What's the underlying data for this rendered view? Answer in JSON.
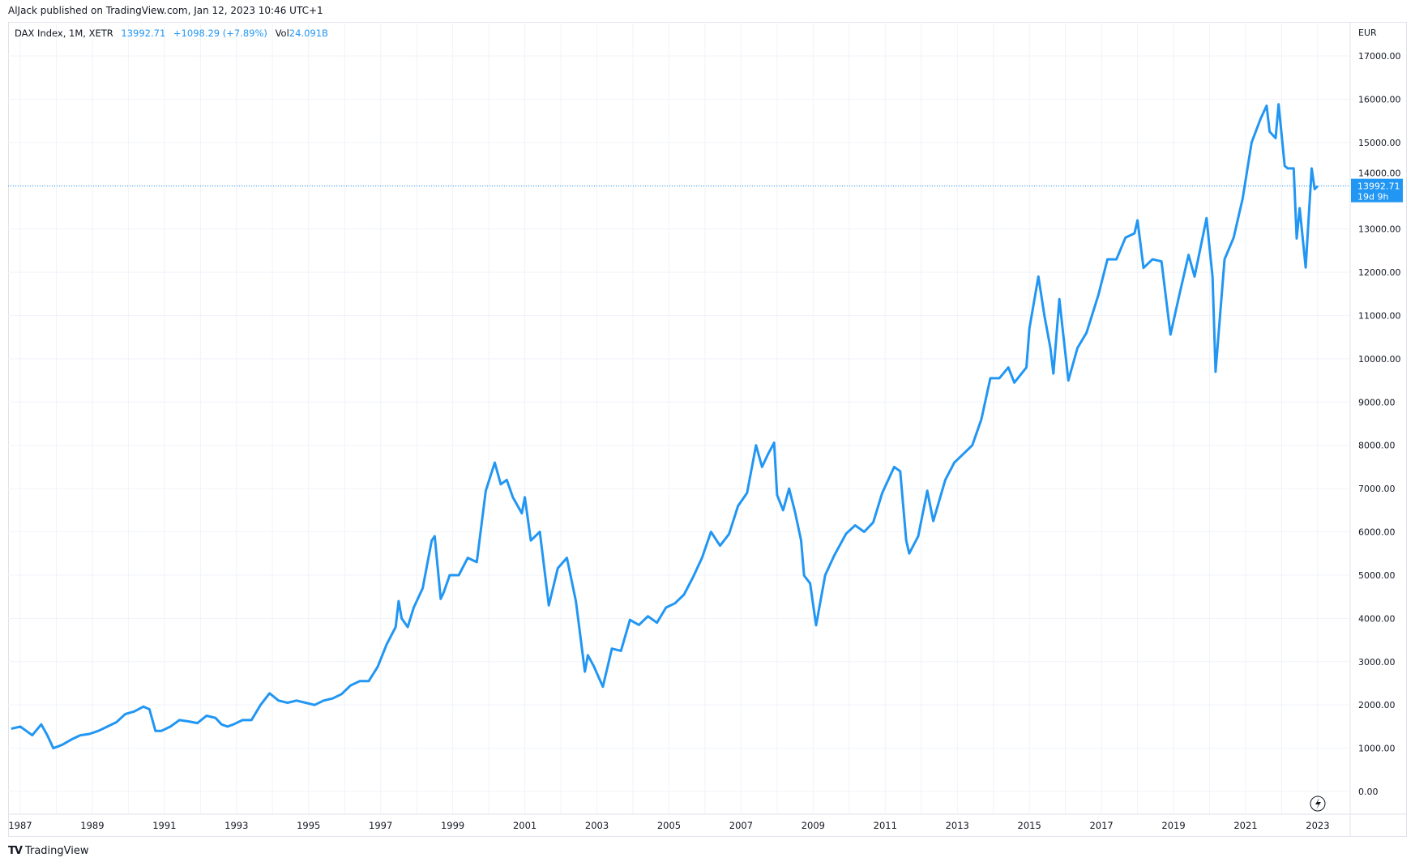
{
  "publish_line": "AlJack published on TradingView.com, Jan 12, 2023 10:46 UTC+1",
  "legend": {
    "symbol": "DAX Index, 1M, XETR",
    "last": "13992.71",
    "change": "+1098.29 (+7.89%)",
    "vol_label": "Vol",
    "vol_value": "24.091B"
  },
  "price_axis": {
    "currency": "EUR"
  },
  "price_tag": {
    "value": "13992.71",
    "countdown": "19d 9h"
  },
  "branding": "TradingView",
  "colors": {
    "line": "#2196f3",
    "grid": "#f0f3fa",
    "tag": "#2196f3"
  },
  "icons": {
    "lightning": "lightning-icon",
    "logo": "tradingview-logo"
  },
  "chart_data": {
    "type": "line",
    "title": "",
    "xlabel": "",
    "ylabel": "",
    "ylim": [
      -500,
      17500
    ],
    "xlim": [
      "1986-09",
      "2023-06"
    ],
    "grid": true,
    "last_price_line": 13992.71,
    "y_ticks": [
      0,
      1000,
      2000,
      3000,
      4000,
      5000,
      6000,
      7000,
      8000,
      9000,
      10000,
      11000,
      12000,
      13000,
      14000,
      15000,
      16000,
      17000
    ],
    "y_tick_labels": [
      "0.00",
      "1000.00",
      "2000.00",
      "3000.00",
      "4000.00",
      "5000.00",
      "6000.00",
      "7000.00",
      "8000.00",
      "9000.00",
      "10000.00",
      "11000.00",
      "12000.00",
      "13000.00",
      "14000.00",
      "15000.00",
      "16000.00",
      "17000.00"
    ],
    "x_tick_labels": [
      "1987",
      "1989",
      "1991",
      "1993",
      "1995",
      "1997",
      "1999",
      "2001",
      "2003",
      "2005",
      "2007",
      "2009",
      "2011",
      "2013",
      "2015",
      "2017",
      "2019",
      "2021",
      "2023"
    ],
    "series": [
      {
        "x": [
          "1986-10",
          "1987-01",
          "1987-03",
          "1987-05",
          "1987-08",
          "1987-10",
          "1987-12",
          "1988-03",
          "1988-06",
          "1988-09",
          "1988-12",
          "1989-03",
          "1989-06",
          "1989-09",
          "1989-12",
          "1990-03",
          "1990-06",
          "1990-08",
          "1990-10",
          "1990-12",
          "1991-03",
          "1991-06",
          "1991-09",
          "1991-12",
          "1992-03",
          "1992-06",
          "1992-08",
          "1992-10",
          "1992-12",
          "1993-03",
          "1993-06",
          "1993-09",
          "1993-12",
          "1994-03",
          "1994-06",
          "1994-09",
          "1994-12",
          "1995-03",
          "1995-06",
          "1995-09",
          "1995-12",
          "1996-03",
          "1996-06",
          "1996-09",
          "1996-12",
          "1997-03",
          "1997-06",
          "1997-07",
          "1997-08",
          "1997-10",
          "1997-12",
          "1998-03",
          "1998-06",
          "1998-07",
          "1998-09",
          "1998-10",
          "1998-12",
          "1999-03",
          "1999-06",
          "1999-09",
          "1999-12",
          "2000-03",
          "2000-05",
          "2000-07",
          "2000-09",
          "2000-12",
          "2001-01",
          "2001-03",
          "2001-06",
          "2001-09",
          "2001-12",
          "2002-03",
          "2002-06",
          "2002-09",
          "2002-10",
          "2002-12",
          "2003-03",
          "2003-06",
          "2003-09",
          "2003-12",
          "2004-03",
          "2004-06",
          "2004-09",
          "2004-12",
          "2005-03",
          "2005-06",
          "2005-09",
          "2005-12",
          "2006-03",
          "2006-06",
          "2006-09",
          "2006-12",
          "2007-03",
          "2007-06",
          "2007-08",
          "2007-10",
          "2007-12",
          "2008-01",
          "2008-03",
          "2008-05",
          "2008-07",
          "2008-09",
          "2008-10",
          "2008-12",
          "2009-02",
          "2009-05",
          "2009-08",
          "2009-12",
          "2010-03",
          "2010-06",
          "2010-09",
          "2010-12",
          "2011-04",
          "2011-06",
          "2011-08",
          "2011-09",
          "2011-12",
          "2012-03",
          "2012-05",
          "2012-09",
          "2012-12",
          "2013-03",
          "2013-06",
          "2013-09",
          "2013-12",
          "2014-03",
          "2014-06",
          "2014-08",
          "2014-12",
          "2015-01",
          "2015-04",
          "2015-06",
          "2015-08",
          "2015-09",
          "2015-11",
          "2015-12",
          "2016-02",
          "2016-05",
          "2016-08",
          "2016-12",
          "2017-03",
          "2017-06",
          "2017-09",
          "2017-12",
          "2018-01",
          "2018-03",
          "2018-06",
          "2018-09",
          "2018-12",
          "2019-03",
          "2019-06",
          "2019-08",
          "2019-12",
          "2020-02",
          "2020-03",
          "2020-06",
          "2020-09",
          "2020-12",
          "2021-03",
          "2021-06",
          "2021-08",
          "2021-09",
          "2021-11",
          "2021-12",
          "2022-02",
          "2022-03",
          "2022-05",
          "2022-06",
          "2022-07",
          "2022-09",
          "2022-11",
          "2022-12",
          "2023-01"
        ],
        "y": [
          1450,
          1500,
          1400,
          1300,
          1550,
          1300,
          1000,
          1080,
          1200,
          1300,
          1330,
          1400,
          1500,
          1600,
          1790,
          1850,
          1960,
          1900,
          1400,
          1400,
          1500,
          1650,
          1620,
          1580,
          1750,
          1700,
          1550,
          1500,
          1550,
          1650,
          1650,
          2000,
          2270,
          2100,
          2050,
          2100,
          2050,
          2000,
          2100,
          2150,
          2250,
          2450,
          2550,
          2550,
          2880,
          3400,
          3800,
          4400,
          4000,
          3800,
          4250,
          4700,
          5800,
          5900,
          4450,
          4600,
          5000,
          5000,
          5400,
          5300,
          6950,
          7600,
          7100,
          7200,
          6800,
          6430,
          6800,
          5800,
          6000,
          4300,
          5160,
          5400,
          4400,
          2770,
          3150,
          2890,
          2420,
          3300,
          3250,
          3965,
          3850,
          4050,
          3900,
          4250,
          4350,
          4550,
          4950,
          5400,
          6000,
          5680,
          5950,
          6600,
          6900,
          8000,
          7500,
          7800,
          8060,
          6850,
          6500,
          7000,
          6450,
          5800,
          4990,
          4810,
          3840,
          5000,
          5450,
          5960,
          6150,
          6000,
          6220,
          6900,
          7500,
          7400,
          5800,
          5500,
          5900,
          6950,
          6250,
          7200,
          7600,
          7800,
          8000,
          8600,
          9550,
          9550,
          9800,
          9450,
          9800,
          10700,
          11900,
          11000,
          10250,
          9660,
          11380,
          10740,
          9500,
          10250,
          10600,
          11480,
          12300,
          12300,
          12800,
          12900,
          13200,
          12100,
          12300,
          12250,
          10560,
          11500,
          12400,
          11900,
          13250,
          11890,
          9700,
          12300,
          12800,
          13700,
          15000,
          15550,
          15850,
          15250,
          15100,
          15880,
          14460,
          14400,
          14400,
          12780,
          13480,
          12110,
          14400,
          13920,
          13992.71
        ]
      }
    ]
  }
}
